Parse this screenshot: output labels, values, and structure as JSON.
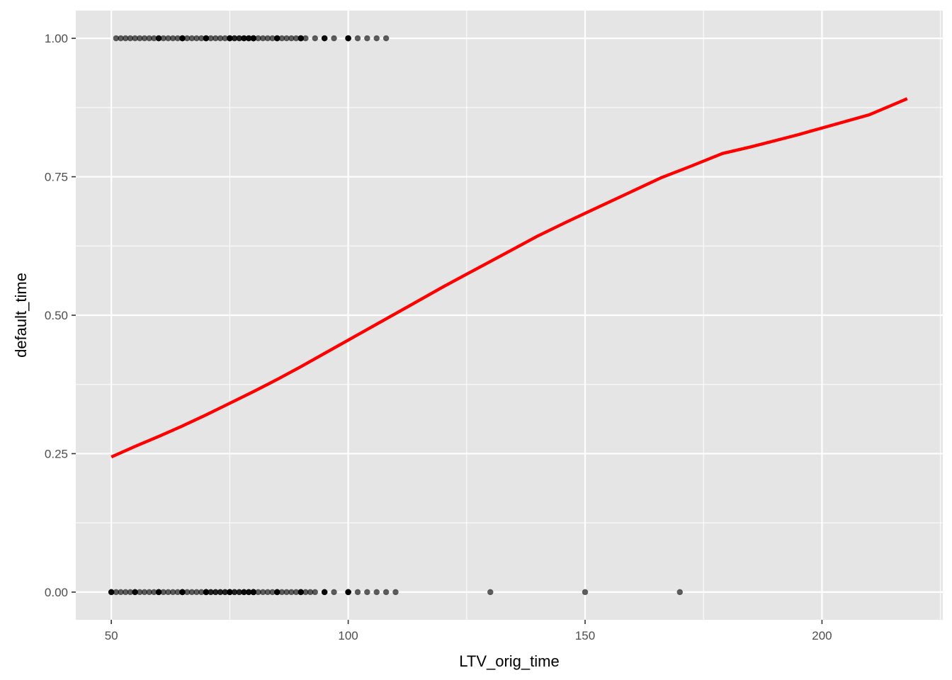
{
  "chart_data": {
    "type": "scatter",
    "xlabel": "LTV_orig_time",
    "ylabel": "default_time",
    "xlim": [
      42.5,
      225.5
    ],
    "ylim": [
      -0.05,
      1.05
    ],
    "x_ticks": [
      50,
      100,
      150,
      200
    ],
    "x_tick_labels": [
      "50",
      "100",
      "150",
      "200"
    ],
    "y_ticks": [
      0,
      0.25,
      0.5,
      0.75,
      1
    ],
    "y_tick_labels": [
      "0.00",
      "0.25",
      "0.50",
      "0.75",
      "1.00"
    ],
    "grid": true,
    "colors": {
      "panel_background": "#e5e5e5",
      "grid": "#ffffff",
      "points": "#000000",
      "fit_line": "#ff0000"
    },
    "series": [
      {
        "kind": "points",
        "point_alpha": 0.03,
        "groups": [
          {
            "y": 1,
            "x": [
              51,
              52,
              53,
              54,
              55,
              56,
              57,
              58,
              59,
              60,
              60,
              60,
              61,
              62,
              63,
              64,
              65,
              65,
              65,
              65,
              66,
              67,
              68,
              69,
              70,
              70,
              70,
              70,
              71,
              72,
              73,
              74,
              75,
              75,
              75,
              75,
              75,
              76,
              76,
              77,
              77,
              78,
              78,
              78,
              79,
              79,
              79,
              80,
              80,
              80,
              80,
              80,
              80,
              80,
              81,
              82,
              83,
              84,
              85,
              85,
              85,
              85,
              86,
              87,
              88,
              89,
              90,
              90,
              90,
              90,
              91,
              93,
              95,
              95,
              95,
              97,
              100,
              100,
              100,
              100,
              100,
              102,
              104,
              106,
              108
            ]
          },
          {
            "y": 0,
            "x": [
              50,
              50,
              50,
              51,
              52,
              53,
              54,
              55,
              55,
              55,
              56,
              57,
              58,
              59,
              60,
              60,
              60,
              60,
              61,
              62,
              63,
              64,
              65,
              65,
              65,
              65,
              65,
              66,
              67,
              68,
              69,
              70,
              70,
              70,
              70,
              70,
              70,
              71,
              71,
              72,
              72,
              73,
              73,
              74,
              74,
              75,
              75,
              75,
              75,
              75,
              75,
              76,
              76,
              77,
              77,
              78,
              78,
              78,
              79,
              79,
              79,
              80,
              80,
              80,
              80,
              80,
              80,
              80,
              81,
              82,
              83,
              84,
              85,
              85,
              85,
              85,
              86,
              87,
              88,
              89,
              90,
              90,
              90,
              90,
              91,
              92,
              93,
              95,
              95,
              95,
              97,
              100,
              100,
              100,
              100,
              100,
              102,
              104,
              106,
              108,
              110,
              130,
              150,
              170
            ]
          }
        ]
      },
      {
        "kind": "line",
        "x": [
          50,
          55,
          60,
          65,
          70,
          75,
          80,
          85,
          90,
          95,
          100,
          105,
          110,
          115,
          120,
          125,
          130,
          135,
          140,
          146,
          150,
          155,
          160,
          166,
          172,
          179,
          185,
          190,
          195,
          200,
          205,
          210,
          218
        ],
        "y": [
          0.244,
          0.263,
          0.281,
          0.3,
          0.32,
          0.341,
          0.362,
          0.384,
          0.407,
          0.431,
          0.455,
          0.479,
          0.503,
          0.527,
          0.551,
          0.574,
          0.597,
          0.62,
          0.643,
          0.668,
          0.684,
          0.704,
          0.724,
          0.748,
          0.768,
          0.792,
          0.804,
          0.815,
          0.826,
          0.838,
          0.85,
          0.862,
          0.891
        ]
      }
    ]
  }
}
